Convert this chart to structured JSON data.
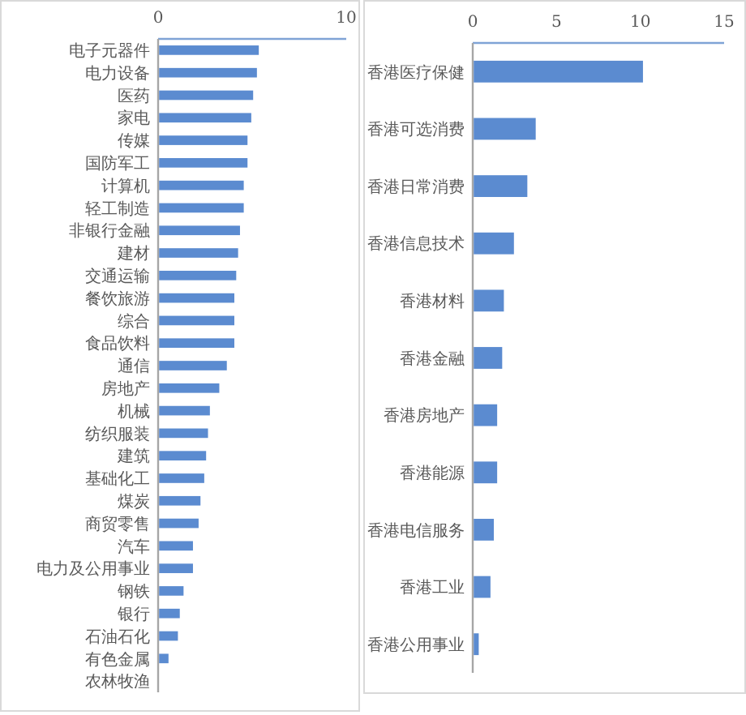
{
  "chart_data": [
    {
      "type": "bar",
      "orientation": "horizontal",
      "categories": [
        "电子元器件",
        "电力设备",
        "医药",
        "家电",
        "传媒",
        "国防军工",
        "计算机",
        "轻工制造",
        "非银行金融",
        "建材",
        "交通运输",
        "餐饮旅游",
        "综合",
        "食品饮料",
        "通信",
        "房地产",
        "机械",
        "纺织服装",
        "建筑",
        "基础化工",
        "煤炭",
        "商贸零售",
        "汽车",
        "电力及公用事业",
        "钢铁",
        "银行",
        "石油石化",
        "有色金属",
        "农林牧渔"
      ],
      "values": [
        5.3,
        5.2,
        5.0,
        4.9,
        4.7,
        4.7,
        4.5,
        4.5,
        4.3,
        4.2,
        4.1,
        4.0,
        4.0,
        4.0,
        3.6,
        3.2,
        2.7,
        2.6,
        2.5,
        2.4,
        2.2,
        2.1,
        1.8,
        1.8,
        1.3,
        1.1,
        1.0,
        0.5,
        0
      ],
      "color": "#5b8bd0",
      "xlim": [
        0,
        10
      ],
      "xticks": [
        0,
        10
      ]
    },
    {
      "type": "bar",
      "orientation": "horizontal",
      "categories": [
        "香港医疗保健",
        "香港可选消费",
        "香港日常消费",
        "香港信息技术",
        "香港材料",
        "香港金融",
        "香港房地产",
        "香港能源",
        "香港电信服务",
        "香港工业",
        "香港公用事业"
      ],
      "values": [
        10.1,
        3.7,
        3.2,
        2.4,
        1.8,
        1.7,
        1.4,
        1.4,
        1.2,
        1.0,
        0.3
      ],
      "color": "#5b8bd0",
      "xlim": [
        0,
        15
      ],
      "xticks": [
        0,
        5,
        10,
        15
      ]
    }
  ]
}
